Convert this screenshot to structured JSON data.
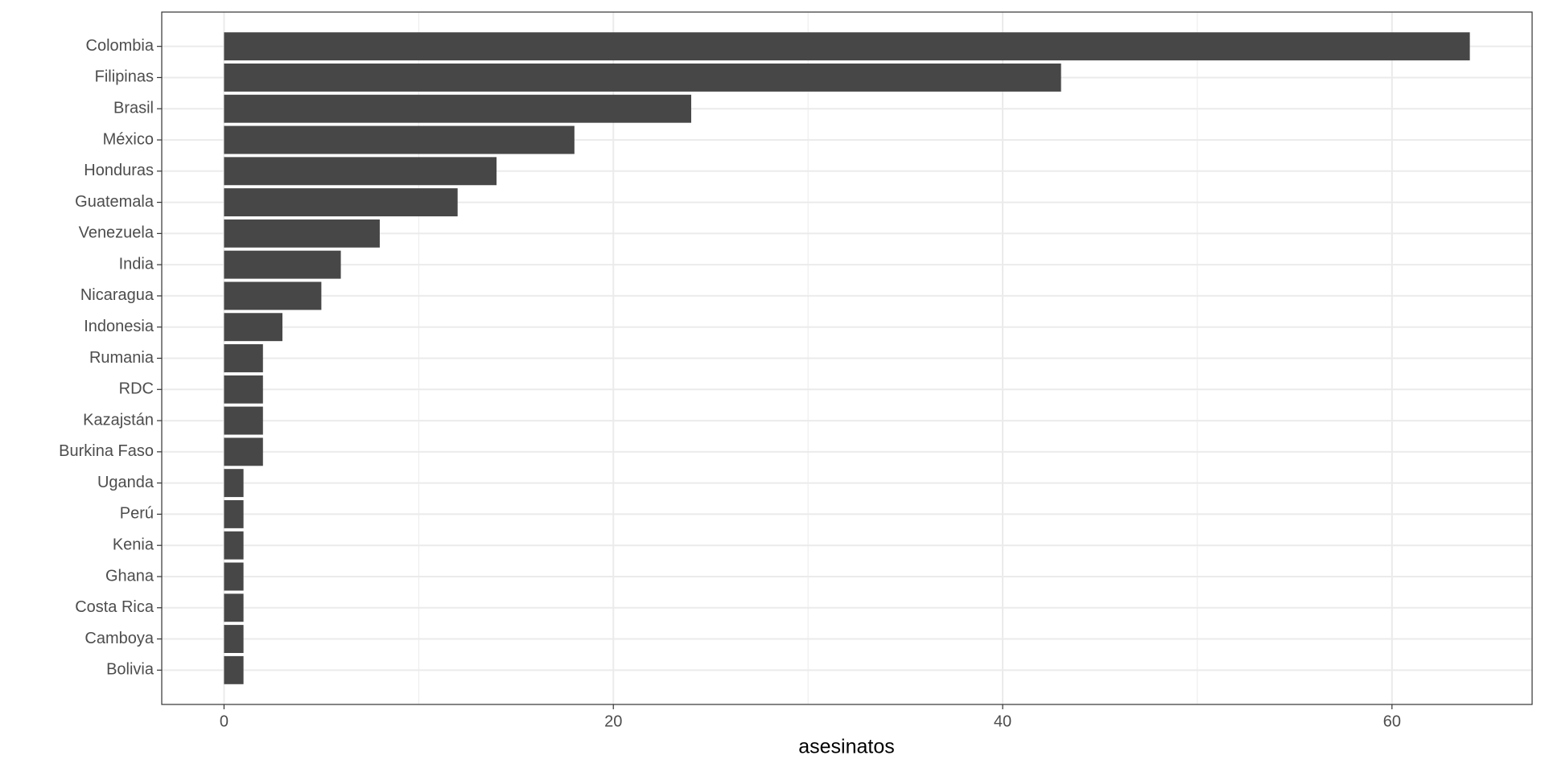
{
  "chart_data": {
    "type": "bar",
    "orientation": "horizontal",
    "x_label": "asesinatos",
    "categories": [
      "Colombia",
      "Filipinas",
      "Brasil",
      "México",
      "Honduras",
      "Guatemala",
      "Venezuela",
      "India",
      "Nicaragua",
      "Indonesia",
      "Rumania",
      "RDC",
      "Kazajstán",
      "Burkina Faso",
      "Uganda",
      "Perú",
      "Kenia",
      "Ghana",
      "Costa Rica",
      "Camboya",
      "Bolivia"
    ],
    "values": [
      64,
      43,
      24,
      18,
      14,
      12,
      8,
      6,
      5,
      3,
      2,
      2,
      2,
      2,
      1,
      1,
      1,
      1,
      1,
      1,
      1
    ],
    "color": "#474747",
    "xlim": [
      -3.2,
      67.2
    ],
    "xticks": [
      0,
      20,
      40,
      60
    ],
    "x_minor_grid": [
      10,
      30,
      50
    ],
    "grid": true
  }
}
